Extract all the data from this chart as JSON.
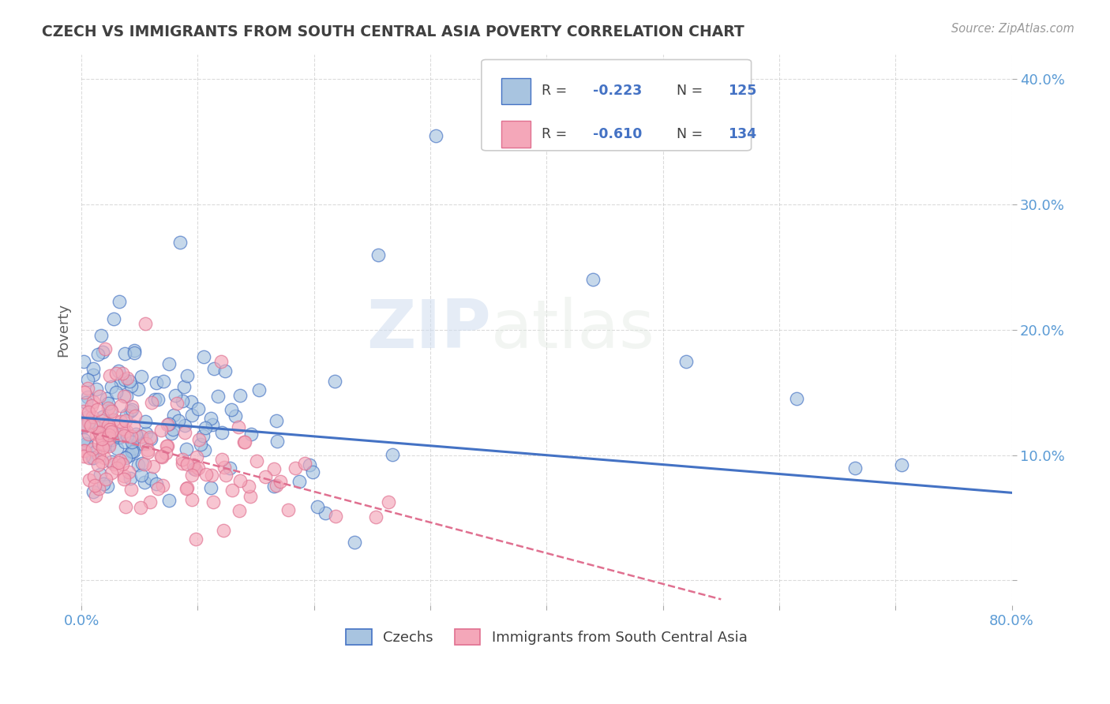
{
  "title": "CZECH VS IMMIGRANTS FROM SOUTH CENTRAL ASIA POVERTY CORRELATION CHART",
  "source": "Source: ZipAtlas.com",
  "ylabel": "Poverty",
  "xlim": [
    0.0,
    0.8
  ],
  "ylim": [
    -0.02,
    0.42
  ],
  "xticks": [
    0.0,
    0.1,
    0.2,
    0.3,
    0.4,
    0.5,
    0.6,
    0.7,
    0.8
  ],
  "yticks": [
    0.0,
    0.1,
    0.2,
    0.3,
    0.4
  ],
  "legend_bottom_label1": "Czechs",
  "legend_bottom_label2": "Immigrants from South Central Asia",
  "watermark_zip": "ZIP",
  "watermark_atlas": "atlas",
  "czech_color": "#a8c4e0",
  "czech_edge_color": "#4472c4",
  "asia_color": "#f4a7b9",
  "asia_edge_color": "#e07090",
  "title_color": "#404040",
  "axis_tick_color": "#5b9bd5",
  "legend_r_color": "#4472c4",
  "background_color": "#ffffff",
  "grid_color": "#cccccc",
  "czech_R": -0.223,
  "czech_N": 125,
  "asia_R": -0.61,
  "asia_N": 134,
  "czech_trend_x0": 0.0,
  "czech_trend_x1": 0.8,
  "czech_trend_y0": 0.13,
  "czech_trend_y1": 0.07,
  "asia_trend_x0": 0.0,
  "asia_trend_x1": 0.55,
  "asia_trend_y0": 0.12,
  "asia_trend_y1": -0.015
}
